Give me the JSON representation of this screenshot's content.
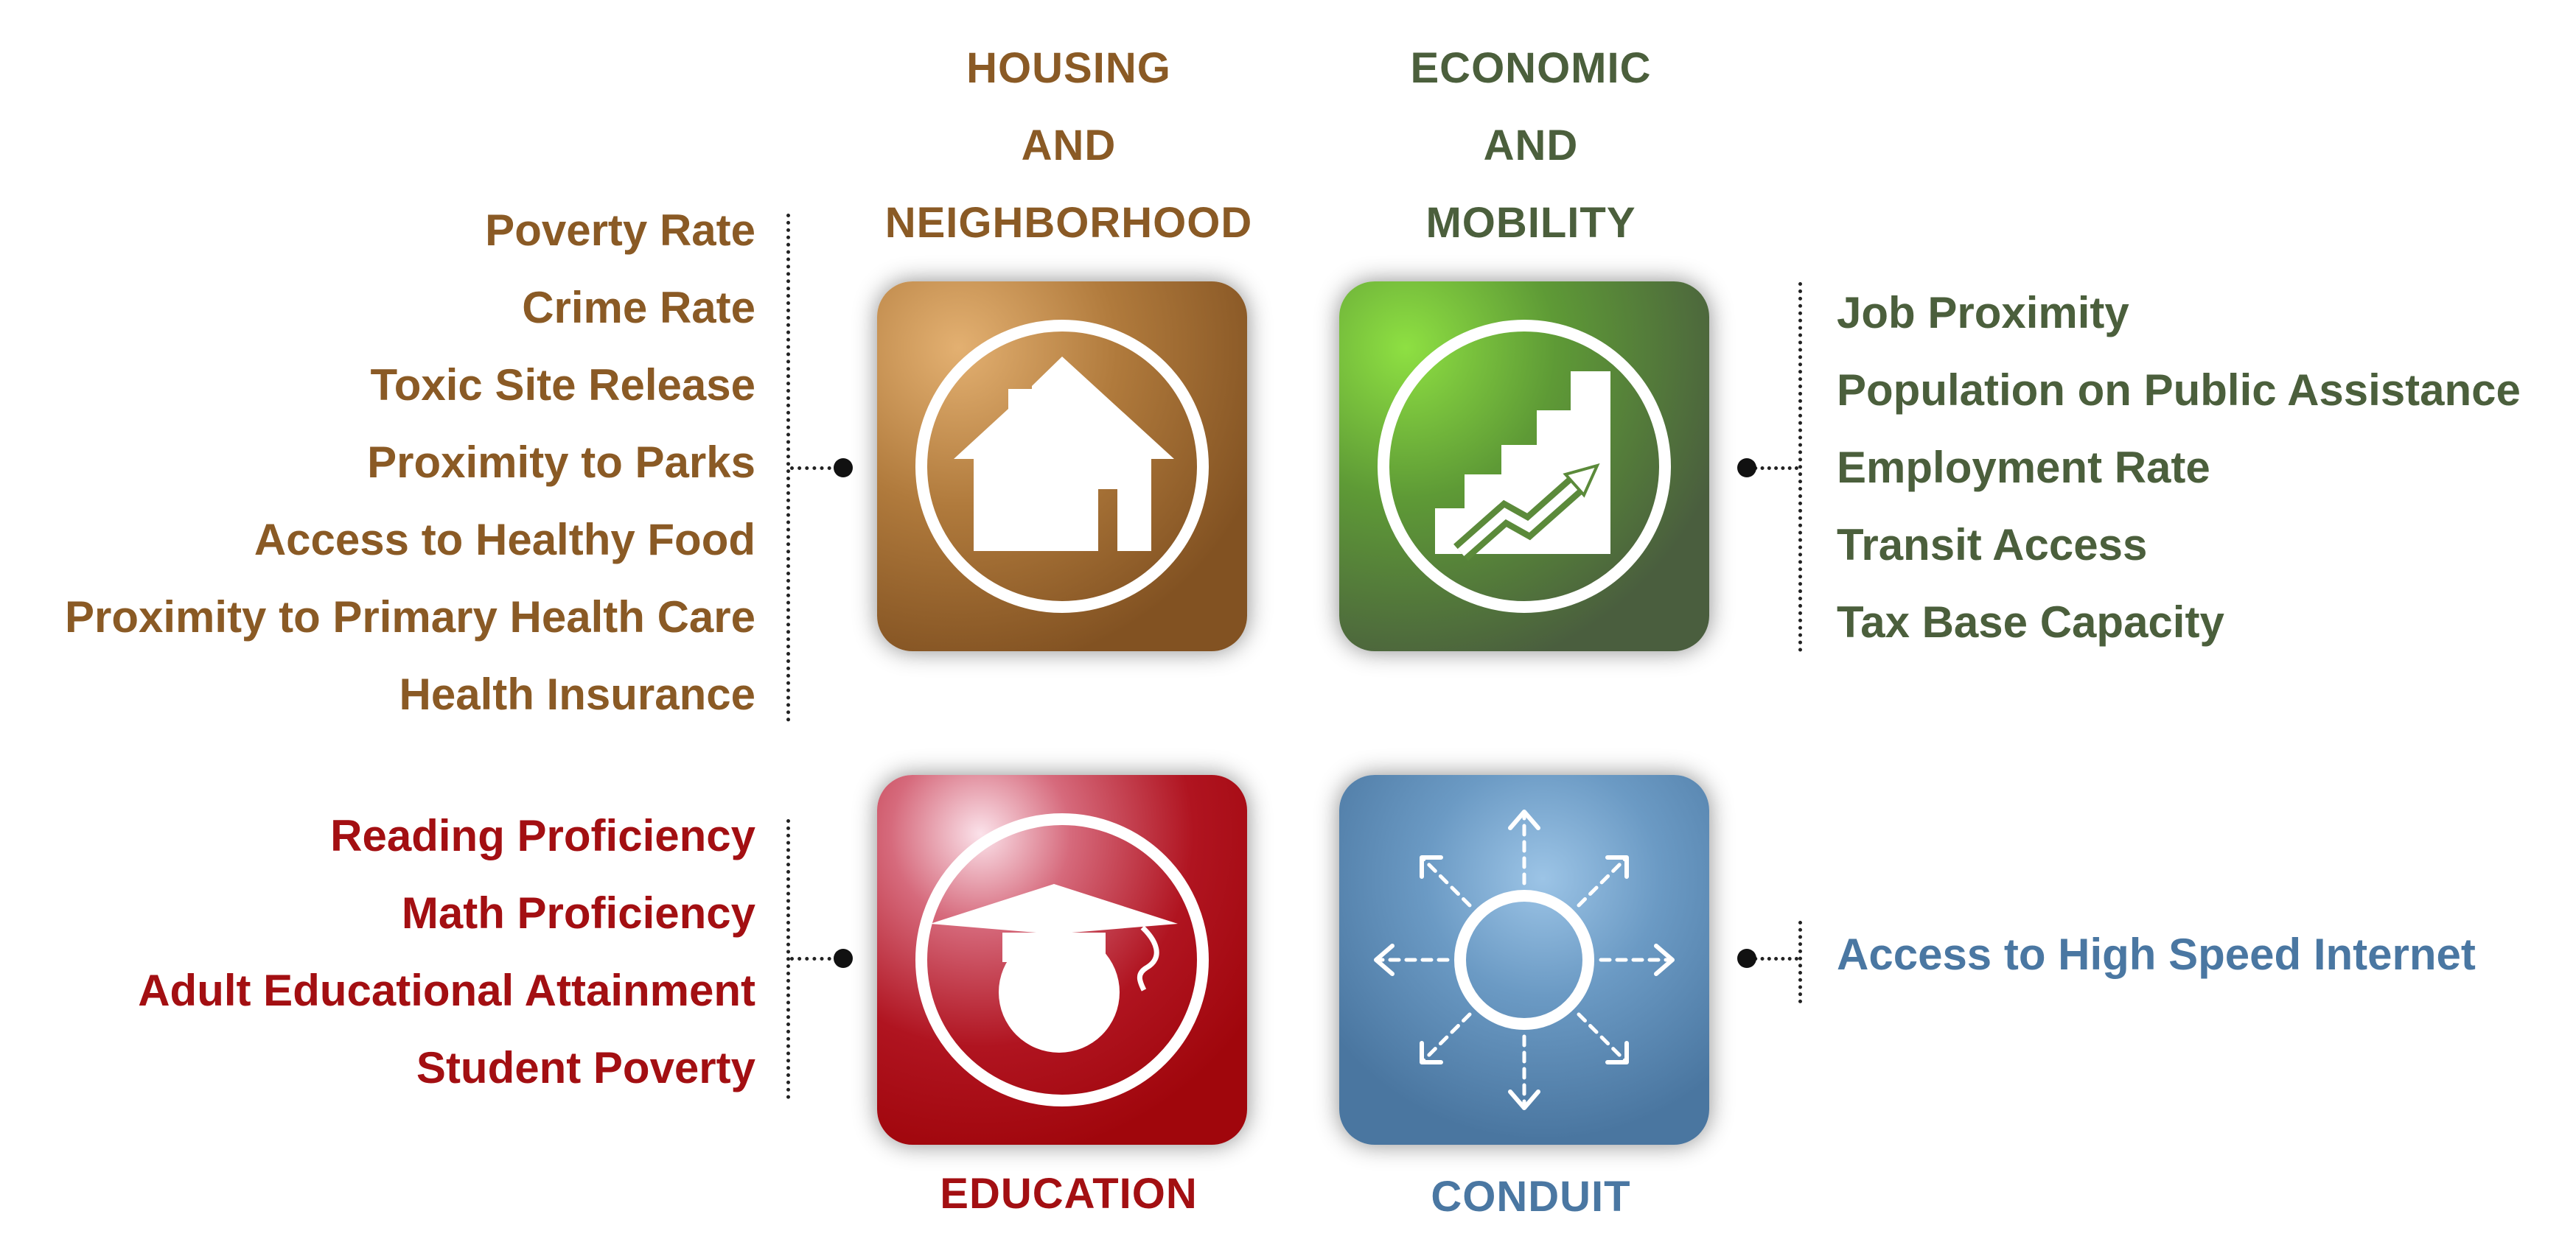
{
  "housing": {
    "title": [
      "HOUSING",
      "AND",
      "NEIGHBORHOOD"
    ],
    "indicators": [
      "Poverty Rate",
      "Crime Rate",
      "Toxic Site Release",
      "Proximity to Parks",
      "Access to Healthy Food",
      "Proximity to Primary Health Care",
      "Health Insurance"
    ],
    "icon": "house-icon",
    "color": "#8a5a25"
  },
  "economic": {
    "title": [
      "ECONOMIC",
      "AND",
      "MOBILITY"
    ],
    "indicators": [
      "Job Proximity",
      "Population on Public Assistance",
      "Employment Rate",
      "Transit Access",
      "Tax Base Capacity"
    ],
    "icon": "rising-stairs-chart-icon",
    "color": "#4b5f3c"
  },
  "education": {
    "title": [
      "EDUCATION"
    ],
    "indicators": [
      "Reading Proficiency",
      "Math Proficiency",
      "Adult Educational Attainment",
      "Student Poverty"
    ],
    "icon": "graduation-cap-icon",
    "color": "#a30f12"
  },
  "conduit": {
    "title": [
      "CONDUIT"
    ],
    "indicators": [
      "Access to High Speed Internet"
    ],
    "icon": "radiating-arrows-icon",
    "color": "#4a77a2"
  }
}
